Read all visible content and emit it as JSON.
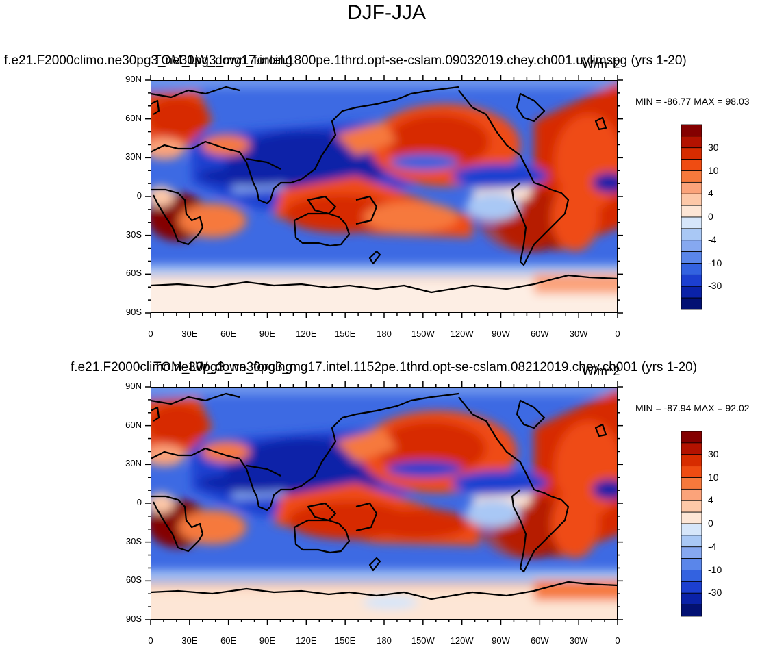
{
  "figure_title": "DJF-JJA",
  "chart_data": [
    {
      "type": "heatmap",
      "projection": "cylindrical-equidistant",
      "left_title": "f.e21.F2000climo.ne30pg3_ne30pg3_mg17.intel.1800pe.1thrd.opt-se-cslam.09032019.chey.ch001.uvlimspg (yrs 1-20)",
      "center_title": "TOM_LW_down_forcing",
      "units": "W/m^2",
      "min_max_text": "MIN = -86.77 MAX =  98.03",
      "min": -86.77,
      "max": 98.03,
      "xlim": [
        0,
        360
      ],
      "ylim": [
        -90,
        90
      ],
      "x_tick_labels": [
        "0",
        "30E",
        "60E",
        "90E",
        "120E",
        "150E",
        "180",
        "150W",
        "120W",
        "90W",
        "60W",
        "30W",
        "0"
      ],
      "y_tick_labels": [
        "90N",
        "60N",
        "30N",
        "0",
        "30S",
        "60S",
        "90S"
      ]
    },
    {
      "type": "heatmap",
      "projection": "cylindrical-equidistant",
      "left_title": "f.e21.F2000climo.ne30pg3_ne30pg3_mg17.intel.1152pe.1thrd.opt-se-cslam.08212019.chey.ch001 (yrs 1-20)",
      "center_title": "TOM_LW_down_forcing",
      "units": "W/m^2",
      "min_max_text": "MIN = -87.94 MAX =  92.02",
      "min": -87.94,
      "max": 92.02,
      "xlim": [
        0,
        360
      ],
      "ylim": [
        -90,
        90
      ],
      "x_tick_labels": [
        "0",
        "30E",
        "60E",
        "90E",
        "120E",
        "150E",
        "180",
        "150W",
        "120W",
        "90W",
        "60W",
        "30W",
        "0"
      ],
      "y_tick_labels": [
        "90N",
        "60N",
        "30N",
        "0",
        "30S",
        "60S",
        "90S"
      ]
    }
  ],
  "colorbar": {
    "colors": [
      "#840000",
      "#b31200",
      "#d72c00",
      "#ef4c12",
      "#f6793c",
      "#fba37a",
      "#fdc8a8",
      "#fde6d6",
      "#d6e6fa",
      "#a9c8f5",
      "#86a8f0",
      "#5a86ea",
      "#3362e0",
      "#1c3fd0",
      "#0a22a8",
      "#031173"
    ],
    "labels": [
      "30",
      "10",
      "4",
      "0",
      "-4",
      "-10",
      "-30"
    ]
  }
}
